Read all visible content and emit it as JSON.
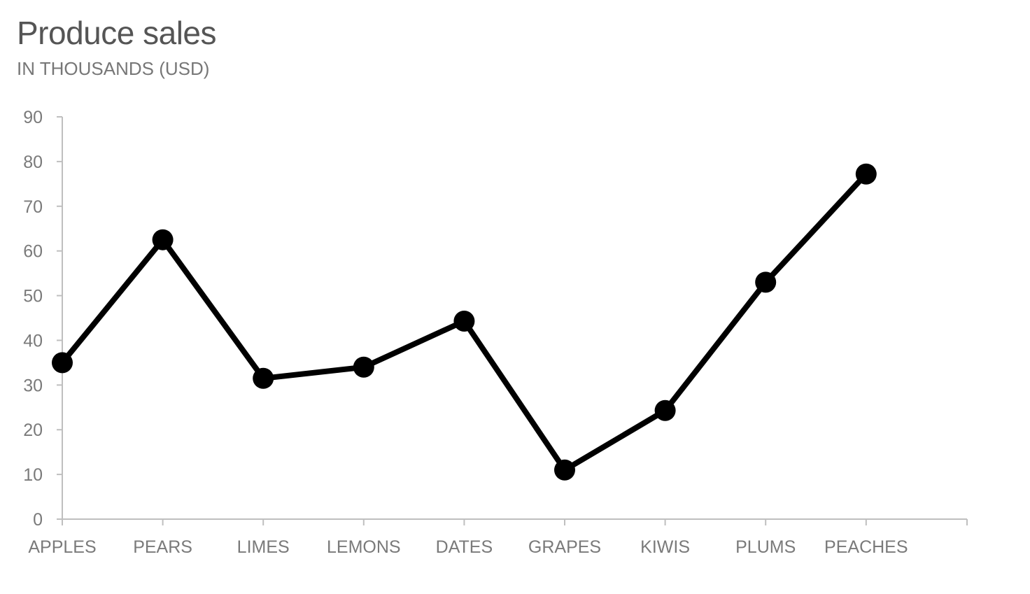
{
  "chart_data": {
    "type": "line",
    "title": "Produce sales",
    "subtitle": "IN THOUSANDS (USD)",
    "xlabel": "",
    "ylabel": "",
    "categories": [
      "APPLES",
      "PEARS",
      "LIMES",
      "LEMONS",
      "DATES",
      "GRAPES",
      "KIWIS",
      "PLUMS",
      "PEACHES"
    ],
    "series": [
      {
        "values": [
          35,
          62.5,
          31.5,
          34,
          44.3,
          11,
          24.3,
          53,
          77.2
        ],
        "color": "#000000"
      }
    ],
    "ylim": [
      0,
      90
    ],
    "yticks": [
      0,
      10,
      20,
      30,
      40,
      50,
      60,
      70,
      80,
      90
    ],
    "grid": false,
    "legend": "none"
  }
}
